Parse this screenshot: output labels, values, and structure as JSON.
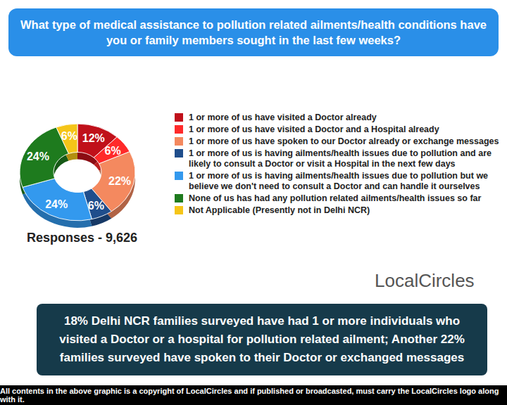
{
  "chart_data": {
    "type": "donut",
    "title": "What type of medical assistance to pollution related ailments/health conditions have you or family members sought in the last few weeks?",
    "categories": [
      "1 or more of us have visited a Doctor already",
      "1 or more of us have visited a Doctor and a Hospital already",
      "1 or more of us have spoken to our Doctor already or exchange messages",
      "1 or more of us is having ailments/health issues due to pollution and are likely to consult a Doctor or visit a Hospital in the next few days",
      "1 or more of us is having ailments/health issues due to pollution but we believe we don't need to consult a Doctor and can handle it ourselves",
      "None of us has had any pollution related ailments/health issues so far",
      "Not Applicable (Presently not in Delhi NCR)"
    ],
    "values": [
      12,
      6,
      22,
      6,
      24,
      24,
      6
    ],
    "value_labels": [
      "12%",
      "6%",
      "22%",
      "6%",
      "24%",
      "24%",
      "6%"
    ],
    "colors": [
      "#c0101a",
      "#ff2a2a",
      "#f4895f",
      "#1f4e8c",
      "#3399ee",
      "#1e7b1e",
      "#f5c518"
    ],
    "data_labels": true,
    "legend": "right",
    "annotation": "Responses - 9,626",
    "logo": "LocalCircles",
    "caption": "18% Delhi NCR families surveyed have had 1 or more individuals who visited a Doctor or a hospital for pollution related ailment; Another 22% families surveyed have spoken to their Doctor or exchanged messages",
    "footer": "All contents in the above graphic is a copyright of LocalCircles and if published or broadcasted, must carry the LocalCircles logo along with it."
  }
}
